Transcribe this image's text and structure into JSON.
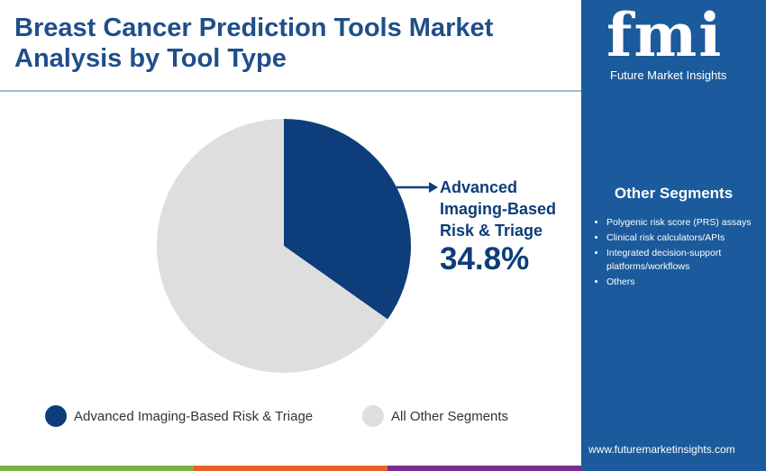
{
  "chart_data": {
    "type": "pie",
    "title": "Breast Cancer Prediction Tools Market Analysis by Tool Type",
    "categories": [
      "Advanced Imaging-Based Risk & Triage",
      "All Other Segments"
    ],
    "values": [
      34.8,
      65.2
    ],
    "value_labels": [
      "34.8%",
      null
    ],
    "colors": [
      "#0d3d7a",
      "#dedede"
    ]
  },
  "sidebar": {
    "logo": "fmi",
    "brand": "Future Market Insights",
    "heading": "Other Segments",
    "items": [
      "Polygenic risk score (PRS) assays",
      "Clinical risk calculators/APIs",
      "Integrated decision-support platforms/workflows",
      "Others"
    ],
    "url": "www.futuremarketinsights.com"
  }
}
